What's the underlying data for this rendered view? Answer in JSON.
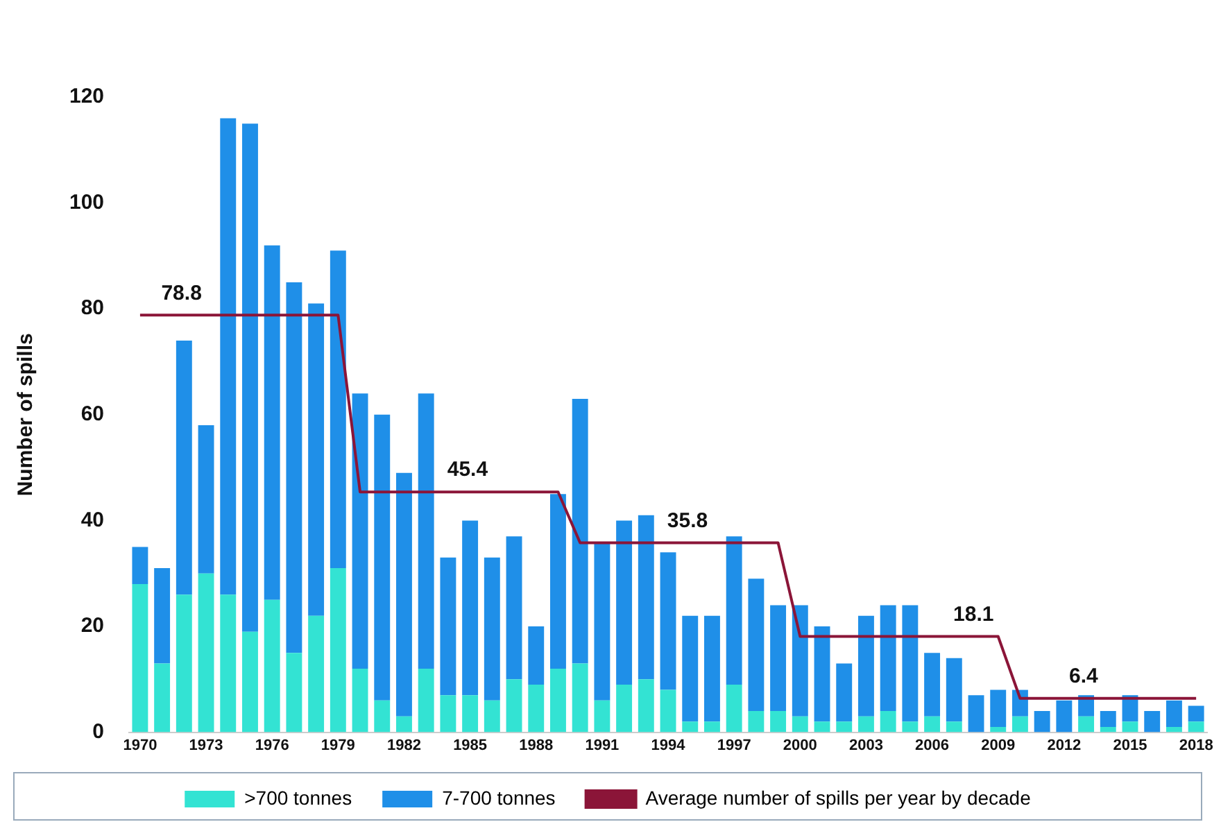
{
  "chart_data": {
    "type": "bar",
    "stacked": true,
    "ylabel": "Number of spills",
    "categories": [
      "1970",
      null,
      null,
      "1973",
      null,
      null,
      "1976",
      null,
      null,
      "1979",
      null,
      null,
      "1982",
      null,
      null,
      "1985",
      null,
      null,
      "1988",
      null,
      null,
      "1991",
      null,
      null,
      "1994",
      null,
      null,
      "1997",
      null,
      null,
      "2000",
      null,
      null,
      "2003",
      null,
      null,
      "2006",
      null,
      null,
      "2009",
      null,
      null,
      "2012",
      null,
      null,
      "2015",
      null,
      null,
      "2018"
    ],
    "series": [
      {
        "name": ">700 tonnes",
        "color": "#33e3d3",
        "values": [
          28,
          13,
          26,
          30,
          26,
          19,
          25,
          15,
          22,
          31,
          12,
          6,
          3,
          12,
          7,
          7,
          6,
          10,
          9,
          12,
          13,
          6,
          9,
          10,
          8,
          2,
          2,
          9,
          4,
          4,
          3,
          2,
          2,
          3,
          4,
          2,
          3,
          2,
          0,
          1,
          3,
          0,
          0,
          3,
          1,
          2,
          0,
          1,
          2
        ]
      },
      {
        "name": "7-700 tonnes",
        "color": "#1f8fe8",
        "values": [
          7,
          18,
          48,
          28,
          90,
          96,
          67,
          70,
          59,
          60,
          52,
          54,
          46,
          52,
          26,
          33,
          27,
          27,
          11,
          33,
          50,
          30,
          31,
          31,
          26,
          20,
          20,
          28,
          25,
          20,
          21,
          18,
          11,
          19,
          20,
          22,
          12,
          12,
          7,
          7,
          5,
          4,
          6,
          4,
          3,
          5,
          4,
          5,
          3
        ]
      },
      {
        "name": "Average number of spills per year by decade",
        "type": "line",
        "color": "#8b1538",
        "marker": "none",
        "values": [
          78.8,
          78.8,
          78.8,
          78.8,
          78.8,
          78.8,
          78.8,
          78.8,
          78.8,
          78.8,
          45.4,
          45.4,
          45.4,
          45.4,
          45.4,
          45.4,
          45.4,
          45.4,
          45.4,
          45.4,
          35.8,
          35.8,
          35.8,
          35.8,
          35.8,
          35.8,
          35.8,
          35.8,
          35.8,
          35.8,
          18.1,
          18.1,
          18.1,
          18.1,
          18.1,
          18.1,
          18.1,
          18.1,
          18.1,
          18.1,
          6.4,
          6.4,
          6.4,
          6.4,
          6.4,
          6.4,
          6.4,
          6.4,
          6.4
        ],
        "value_labels": [
          null,
          "78.8",
          null,
          null,
          null,
          null,
          null,
          null,
          null,
          null,
          null,
          null,
          null,
          null,
          "45.4",
          null,
          null,
          null,
          null,
          null,
          null,
          null,
          null,
          null,
          "35.8",
          null,
          null,
          null,
          null,
          null,
          null,
          null,
          null,
          null,
          null,
          null,
          null,
          "18.1",
          null,
          null,
          null,
          null,
          "6.4",
          null,
          null,
          null,
          null,
          null,
          null
        ]
      }
    ],
    "ylim": [
      0,
      120
    ],
    "yticks": [
      0,
      20,
      40,
      60,
      80,
      100,
      120
    ],
    "grid": false,
    "legend": "bottom"
  }
}
